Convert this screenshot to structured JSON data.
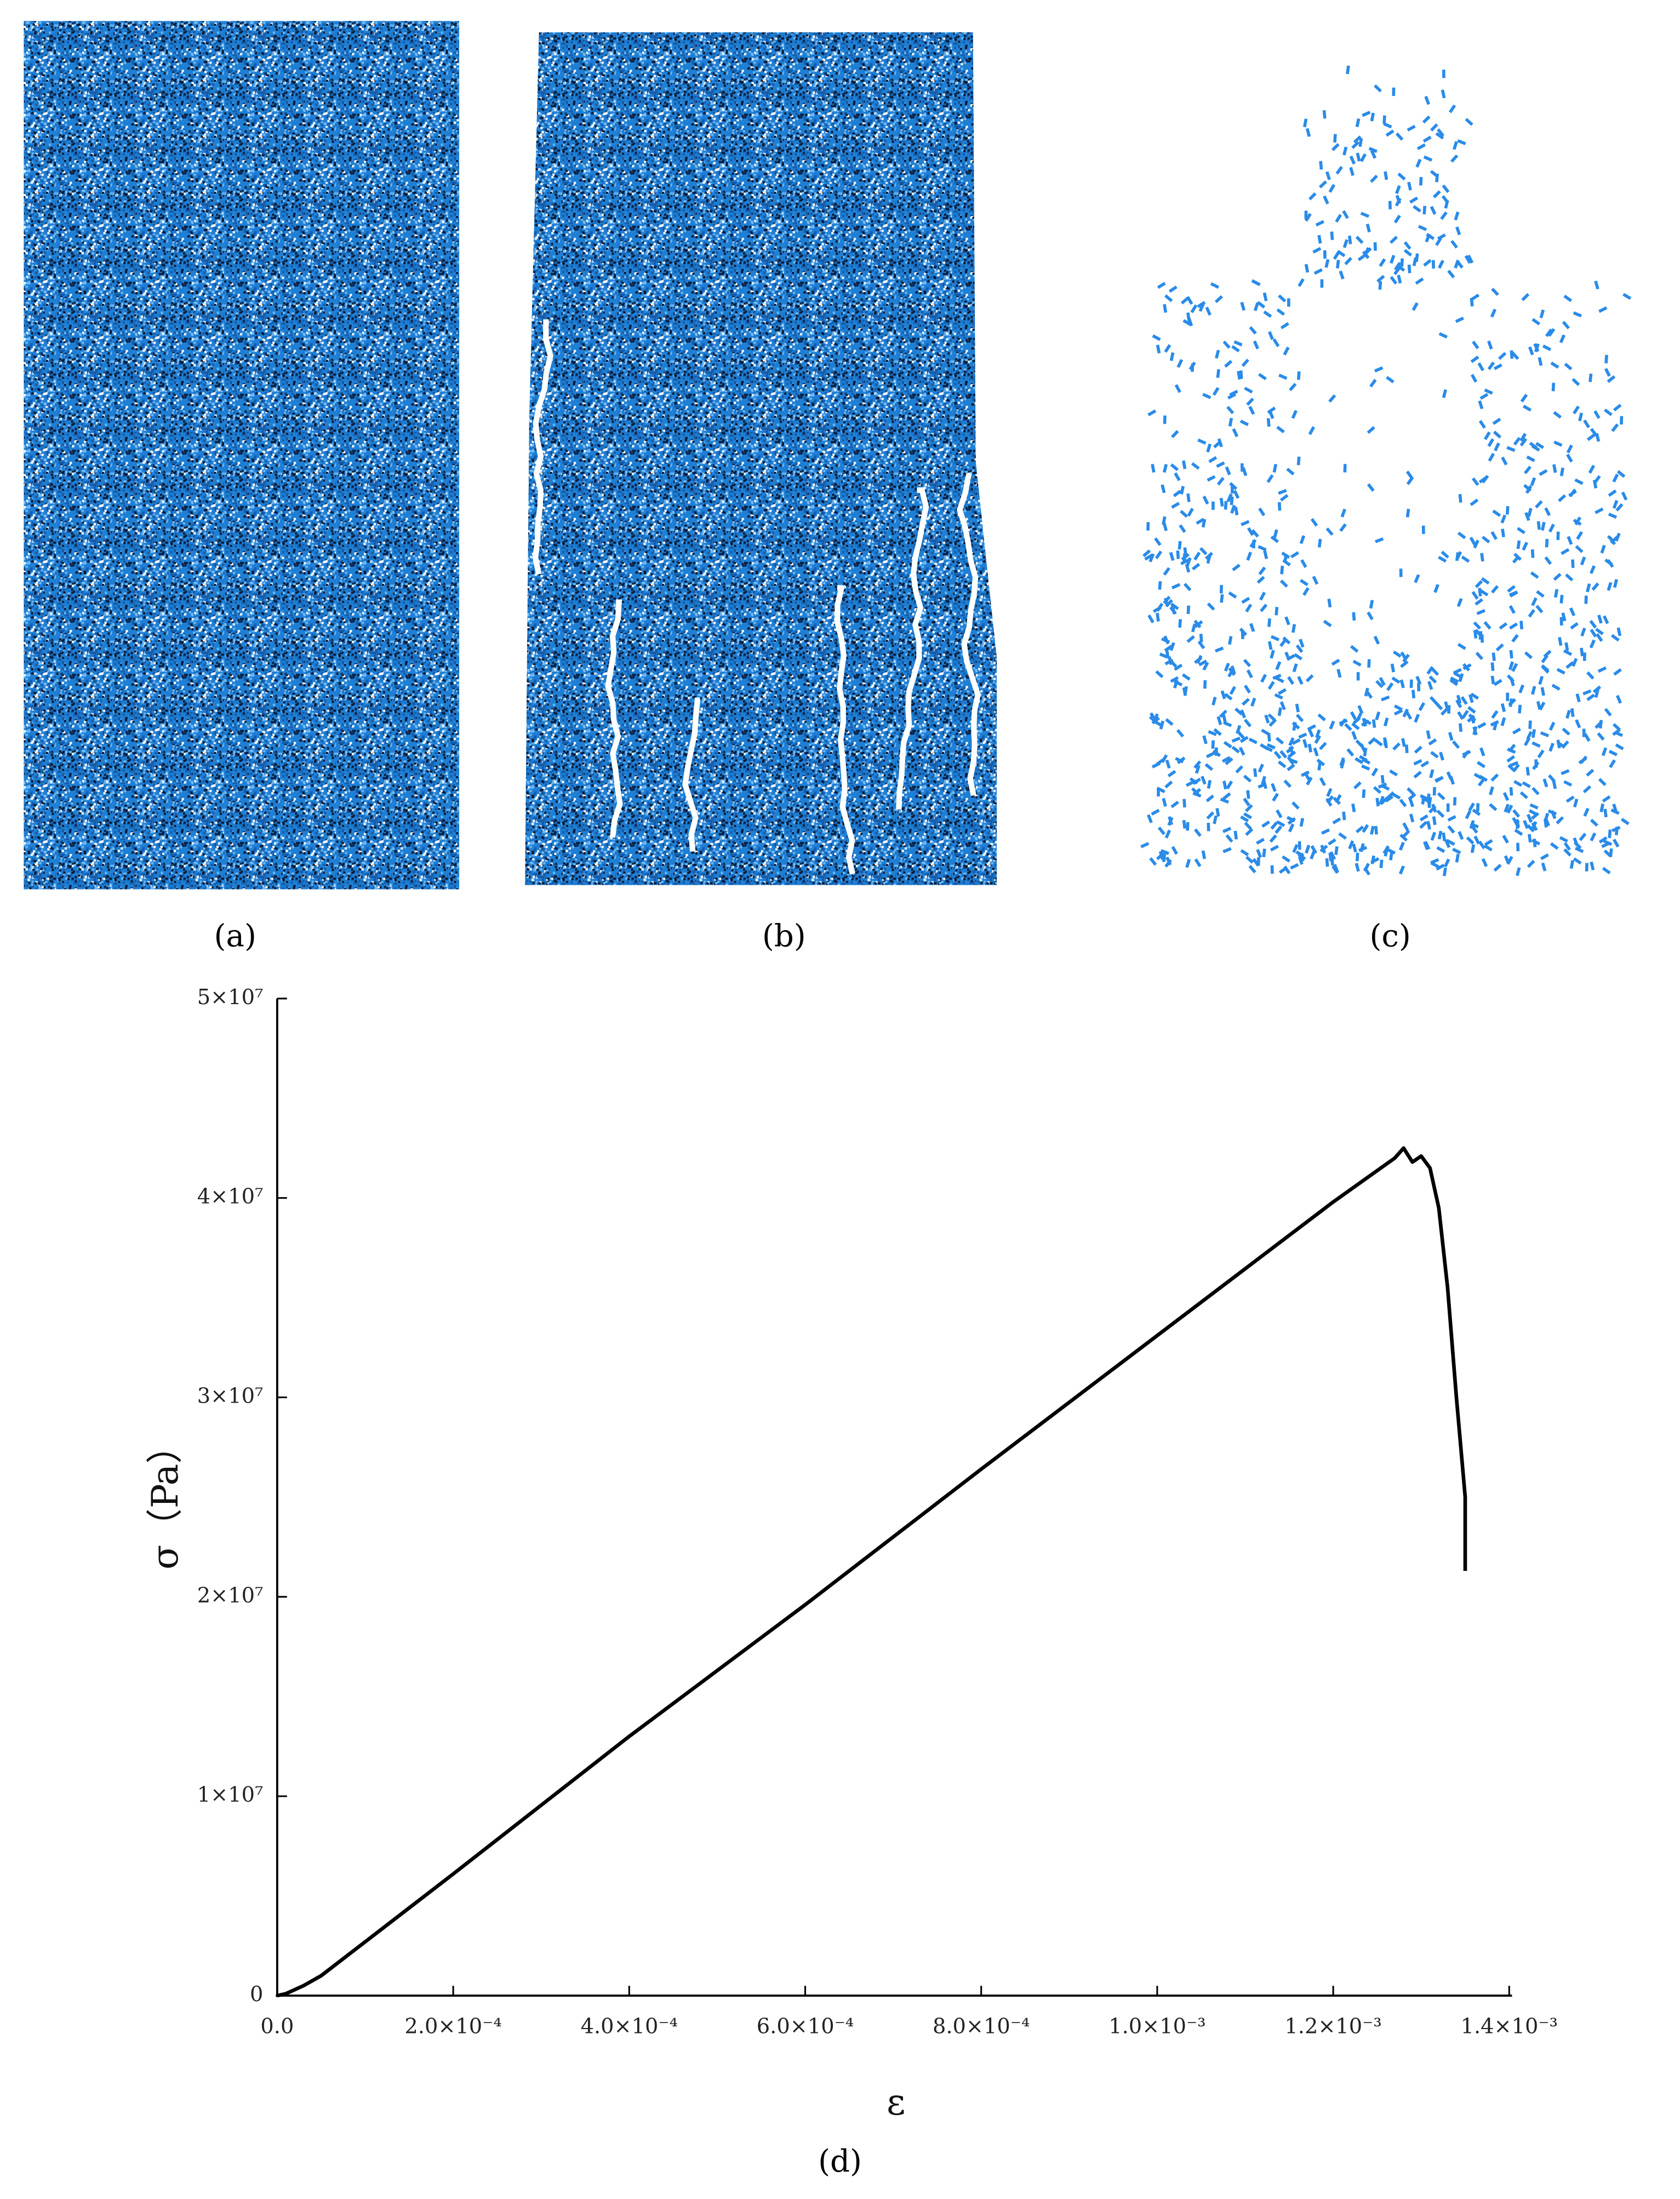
{
  "panels": [
    "(a)",
    "(b)",
    "(c)",
    "(d)"
  ],
  "chart_data": {
    "type": "line",
    "x_label": "ε",
    "y_label": "σ（Pa）",
    "xlim": [
      0,
      0.0014
    ],
    "ylim": [
      0,
      50000000
    ],
    "xticks": [
      {
        "value": 0,
        "label": "0.0"
      },
      {
        "value": 0.0002,
        "label": "2.0×10⁻⁴"
      },
      {
        "value": 0.0004,
        "label": "4.0×10⁻⁴"
      },
      {
        "value": 0.0006,
        "label": "6.0×10⁻⁴"
      },
      {
        "value": 0.0008,
        "label": "8.0×10⁻⁴"
      },
      {
        "value": 0.001,
        "label": "1.0×10⁻³"
      },
      {
        "value": 0.0012,
        "label": "1.2×10⁻³"
      },
      {
        "value": 0.0014,
        "label": "1.4×10⁻³"
      }
    ],
    "yticks": [
      0,
      {
        "value": 10000000,
        "label": "1×10⁷"
      },
      {
        "value": 20000000,
        "label": "2×10⁷"
      },
      {
        "value": 30000000,
        "label": "3×10⁷"
      },
      {
        "value": 40000000,
        "label": "4×10⁷"
      },
      {
        "value": 50000000,
        "label": "5×10⁷"
      }
    ],
    "series": [
      {
        "name": "σ",
        "color": "#000000",
        "x": [
          0,
          1e-05,
          3e-05,
          5e-05,
          0.0001,
          0.0002,
          0.0004,
          0.0006,
          0.0008,
          0.001,
          0.0012,
          0.00127,
          0.00128,
          0.00129,
          0.0013,
          0.00131,
          0.00132,
          0.00133,
          0.00134,
          0.00135,
          0.00135
        ],
        "values": [
          0,
          100000,
          500000,
          1000000,
          2700000,
          6100000,
          13000000,
          19600000,
          26400000,
          33100000,
          39800000,
          42000000,
          42500000,
          41800000,
          42100000,
          41500000,
          39500000,
          35500000,
          30000000,
          25000000,
          21300000
        ]
      }
    ]
  }
}
